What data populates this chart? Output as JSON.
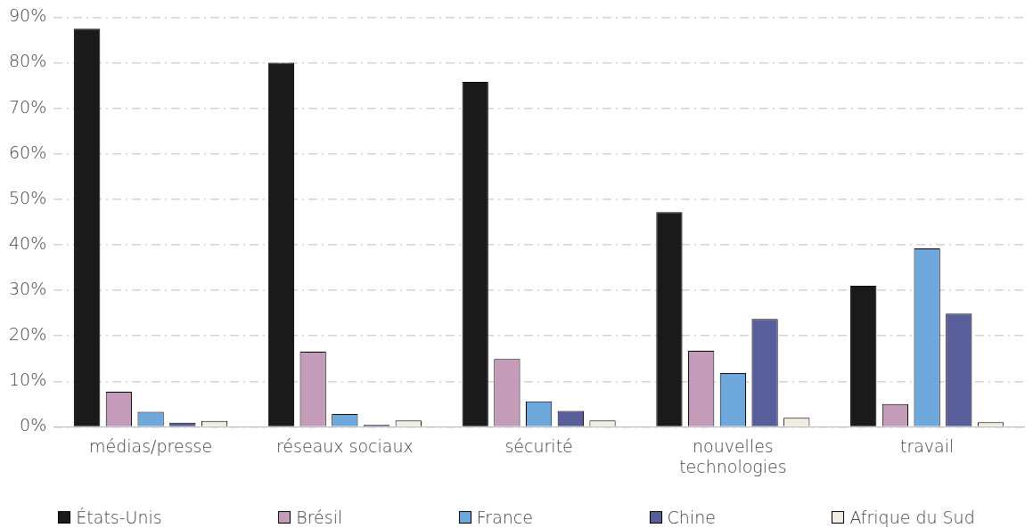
{
  "chart_data": {
    "type": "bar",
    "categories": [
      "médias/presse",
      "réseaux sociaux",
      "sécurité",
      "nouvelles technologies",
      "travail"
    ],
    "series": [
      {
        "name": "États-Unis",
        "color": "#1a1a1a",
        "values": [
          87.5,
          80,
          75.8,
          47.2,
          31
        ]
      },
      {
        "name": "Brésil",
        "color": "#c49cba",
        "values": [
          7.7,
          16.5,
          14.9,
          16.7,
          5
        ]
      },
      {
        "name": "France",
        "color": "#6fa8dc",
        "values": [
          3.3,
          2.8,
          5.6,
          11.8,
          39.2
        ]
      },
      {
        "name": "Chine",
        "color": "#585e99",
        "values": [
          0.9,
          0.4,
          3.5,
          23.7,
          24.9
        ]
      },
      {
        "name": "Afrique du Sud",
        "color": "#f0ece0",
        "values": [
          1.3,
          1.4,
          1.4,
          2,
          1
        ]
      }
    ],
    "ylim": [
      0,
      90
    ],
    "yticks": [
      {
        "value": 0,
        "label": "0%"
      },
      {
        "value": 10,
        "label": "10%"
      },
      {
        "value": 20,
        "label": "20%"
      },
      {
        "value": 30,
        "label": "30%"
      },
      {
        "value": 40,
        "label": "40%"
      },
      {
        "value": 50,
        "label": "50%"
      },
      {
        "value": 60,
        "label": "60%"
      },
      {
        "value": 70,
        "label": "70%"
      },
      {
        "value": 80,
        "label": "80%"
      },
      {
        "value": 90,
        "label": "90%"
      }
    ],
    "grid": "y",
    "legend": "bottom"
  }
}
